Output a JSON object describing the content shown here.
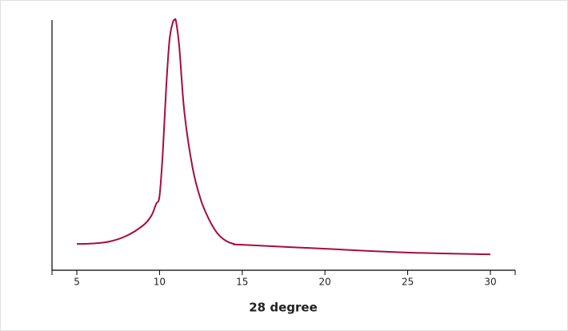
{
  "chart_data": {
    "type": "line",
    "xlabel": "28 degree",
    "x": [
      5,
      6,
      7,
      8,
      9,
      9.5,
      9.8,
      10,
      10.2,
      10.4,
      10.6,
      10.8,
      10.9,
      11,
      11.2,
      11.5,
      12,
      12.5,
      13,
      13.5,
      14,
      14.5,
      15,
      20,
      25,
      30
    ],
    "series": [
      {
        "color": "#a50d3e",
        "values": [
          10.4,
          10.6,
          11.4,
          13.6,
          17.7,
          21.5,
          26.3,
          29.4,
          46.8,
          72,
          91,
          98,
          99,
          98.4,
          88,
          62.7,
          40.5,
          27.8,
          20,
          14.6,
          11.7,
          10.4,
          10.1,
          8.5,
          7,
          6.3
        ]
      }
    ],
    "xlim": [
      3.5,
      31.5
    ],
    "xticks": [
      5,
      10,
      15,
      20,
      25,
      30
    ],
    "ylim": [
      0,
      100
    ]
  }
}
